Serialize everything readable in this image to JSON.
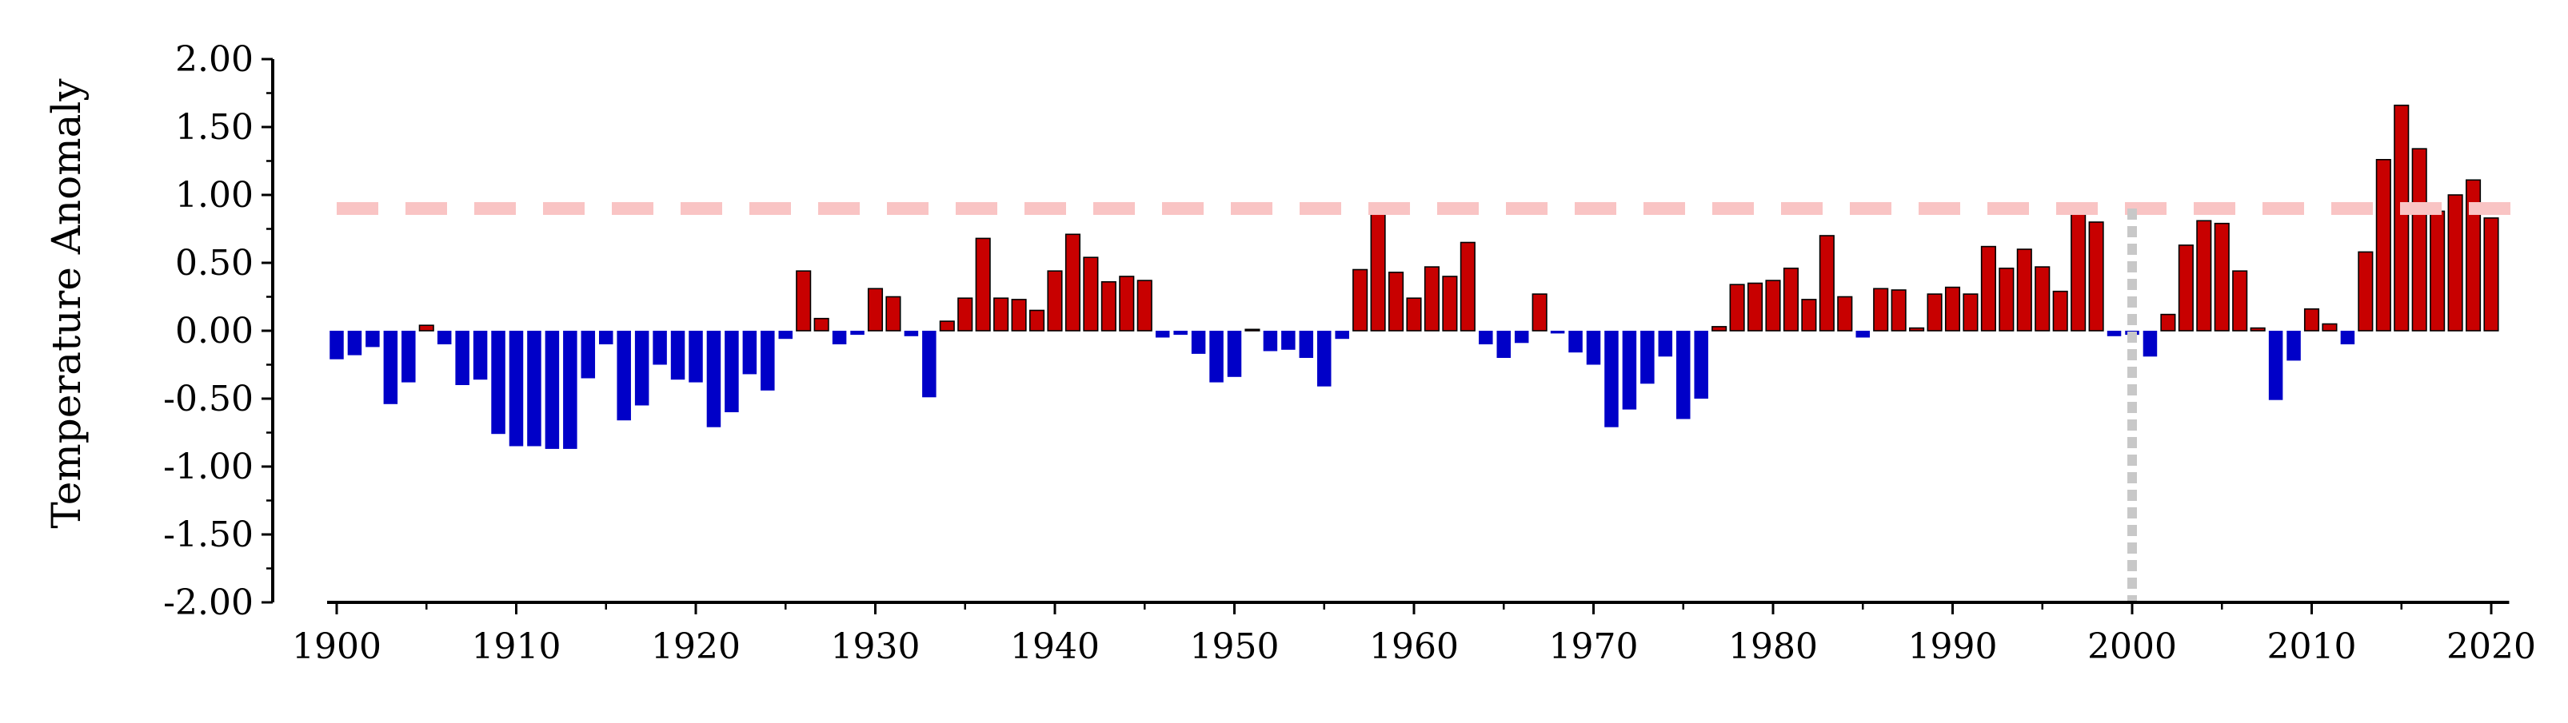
{
  "chart_data": {
    "type": "bar",
    "title": "",
    "xlabel": "",
    "ylabel": "Temperature Anomaly",
    "ylim": [
      -2.0,
      2.0
    ],
    "yticks": [
      "2.00",
      "1.50",
      "1.00",
      "0.50",
      "0.00",
      "-0.50",
      "-1.00",
      "-1.50",
      "-2.00"
    ],
    "xticks": [
      "1900",
      "1910",
      "1920",
      "1930",
      "1940",
      "1950",
      "1960",
      "1970",
      "1980",
      "1990",
      "2000",
      "2010",
      "2020"
    ],
    "x": [
      1900,
      1901,
      1902,
      1903,
      1904,
      1905,
      1906,
      1907,
      1908,
      1909,
      1910,
      1911,
      1912,
      1913,
      1914,
      1915,
      1916,
      1917,
      1918,
      1919,
      1920,
      1921,
      1922,
      1923,
      1924,
      1925,
      1926,
      1927,
      1928,
      1929,
      1930,
      1931,
      1932,
      1933,
      1934,
      1935,
      1936,
      1937,
      1938,
      1939,
      1940,
      1941,
      1942,
      1943,
      1944,
      1945,
      1946,
      1947,
      1948,
      1949,
      1950,
      1951,
      1952,
      1953,
      1954,
      1955,
      1956,
      1957,
      1958,
      1959,
      1960,
      1961,
      1962,
      1963,
      1964,
      1965,
      1966,
      1967,
      1968,
      1969,
      1970,
      1971,
      1972,
      1973,
      1974,
      1975,
      1976,
      1977,
      1978,
      1979,
      1980,
      1981,
      1982,
      1983,
      1984,
      1985,
      1986,
      1987,
      1988,
      1989,
      1990,
      1991,
      1992,
      1993,
      1994,
      1995,
      1996,
      1997,
      1998,
      1999,
      2000,
      2001,
      2002,
      2003,
      2004,
      2005,
      2006,
      2007,
      2008,
      2009,
      2010,
      2011,
      2012,
      2013,
      2014,
      2015,
      2016,
      2017,
      2018,
      2019,
      2020
    ],
    "values": [
      -0.21,
      -0.18,
      -0.12,
      -0.54,
      -0.38,
      0.04,
      -0.1,
      -0.4,
      -0.36,
      -0.76,
      -0.85,
      -0.85,
      -0.87,
      -0.87,
      -0.35,
      -0.1,
      -0.66,
      -0.55,
      -0.25,
      -0.36,
      -0.38,
      -0.71,
      -0.6,
      -0.32,
      -0.44,
      -0.06,
      0.44,
      0.09,
      -0.1,
      -0.03,
      0.31,
      0.25,
      -0.04,
      -0.49,
      0.07,
      0.24,
      0.68,
      0.24,
      0.23,
      0.15,
      0.44,
      0.71,
      0.54,
      0.36,
      0.4,
      0.37,
      -0.05,
      -0.03,
      -0.17,
      -0.38,
      -0.34,
      0.01,
      -0.15,
      -0.14,
      -0.2,
      -0.41,
      -0.06,
      0.45,
      0.89,
      0.43,
      0.24,
      0.47,
      0.4,
      0.65,
      -0.1,
      -0.2,
      -0.09,
      0.27,
      -0.02,
      -0.16,
      -0.25,
      -0.71,
      -0.58,
      -0.39,
      -0.19,
      -0.65,
      -0.5,
      0.03,
      0.34,
      0.35,
      0.37,
      0.46,
      0.23,
      0.7,
      0.25,
      -0.05,
      0.31,
      0.3,
      0.02,
      0.27,
      0.32,
      0.27,
      0.62,
      0.46,
      0.6,
      0.47,
      0.29,
      0.89,
      0.8,
      -0.04,
      -0.03,
      -0.19,
      0.12,
      0.63,
      0.81,
      0.79,
      0.44,
      0.02,
      -0.51,
      -0.22,
      0.16,
      0.05,
      -0.1,
      0.58,
      1.26,
      1.66,
      1.34,
      0.88,
      1.0,
      1.11,
      0.83
    ],
    "reference_line": {
      "value": 0.9,
      "style": "dashed",
      "color": "#f9c4c4"
    },
    "marker_line": {
      "x": 2000,
      "style": "dotted",
      "color": "#c8c8c8"
    },
    "colors": {
      "positive": "#c80000",
      "negative": "#0000c8",
      "outline": "#000000"
    },
    "grid": false,
    "legend": "none"
  }
}
